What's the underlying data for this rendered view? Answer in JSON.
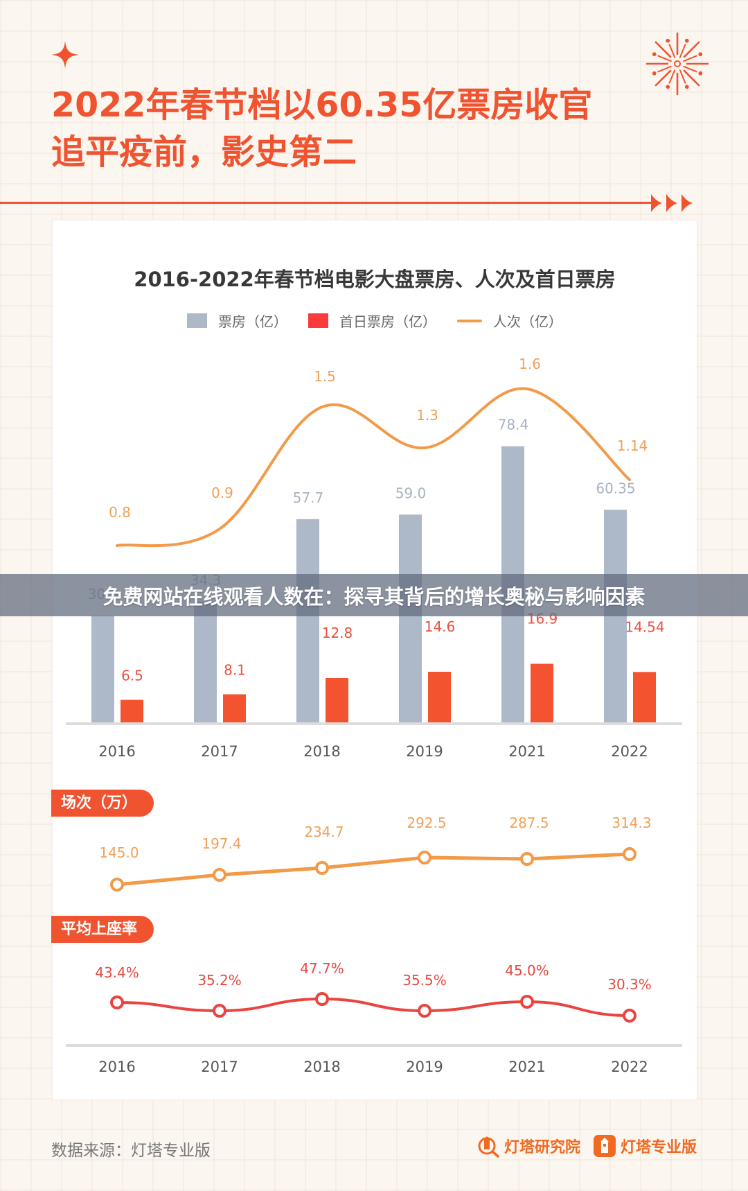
{
  "header": {
    "title_line1": "2022年春节档以60.35亿票房收官",
    "title_line2": "追平疫前，影史第二",
    "icons": [
      "sparkle-star-icon",
      "firework-icon",
      "triple-arrow-icon"
    ]
  },
  "colors": {
    "accent": "#f0532f",
    "box_office_bar": "#adb8c9",
    "first_day_bar": "#f4532f",
    "admissions_line": "#f29a48",
    "occupancy_line": "#ea4440",
    "background": "#fbf6f0",
    "banner_overlay": "#606a7c"
  },
  "main_chart": {
    "title": "2016-2022年春节档电影大盘票房、人次及首日票房",
    "legend": [
      {
        "label": "票房（亿）",
        "type": "bar"
      },
      {
        "label": "首日票房（亿）",
        "type": "bar"
      },
      {
        "label": "人次（亿）",
        "type": "line"
      }
    ],
    "years": [
      "2016",
      "2017",
      "2018",
      "2019",
      "2021",
      "2022"
    ]
  },
  "screenings": {
    "label": "场次（万）"
  },
  "occupancy": {
    "label": "平均上座率"
  },
  "overlay_banner": {
    "text": "免费网站在线观看人数在：探寻其背后的增长奥秘与影响因素"
  },
  "footer": {
    "source": "数据来源：灯塔专业版",
    "logo1": "灯塔研究院",
    "logo2": "灯塔专业版"
  },
  "chart_data": [
    {
      "type": "bar",
      "title": "2016-2022年春节档电影大盘票房、人次及首日票房",
      "categories": [
        "2016",
        "2017",
        "2018",
        "2019",
        "2021",
        "2022"
      ],
      "series": [
        {
          "name": "票房（亿）",
          "type": "bar",
          "values": [
            30.3,
            34.3,
            57.7,
            59.0,
            78.4,
            60.35
          ],
          "labels": [
            "30.3",
            "34.3",
            "57.7",
            "59.0",
            "78.4",
            "60.35"
          ]
        },
        {
          "name": "首日票房（亿）",
          "type": "bar",
          "values": [
            6.5,
            8.1,
            12.8,
            14.6,
            16.9,
            14.54
          ],
          "labels": [
            "6.5",
            "8.1",
            "12.8",
            "14.6",
            "16.9",
            "14.54"
          ]
        },
        {
          "name": "人次（亿）",
          "type": "line",
          "values": [
            0.8,
            0.9,
            1.5,
            1.3,
            1.6,
            1.14
          ],
          "labels": [
            "0.8",
            "0.9",
            "1.5",
            "1.3",
            "1.6",
            "1.14"
          ]
        }
      ],
      "xlabel": "",
      "ylabel": "",
      "grid": false,
      "legend_position": "top"
    },
    {
      "type": "line",
      "title": "场次（万）",
      "categories": [
        "2016",
        "2017",
        "2018",
        "2019",
        "2021",
        "2022"
      ],
      "values": [
        145.0,
        197.4,
        234.7,
        292.5,
        287.5,
        314.3
      ],
      "labels": [
        "145.0",
        "197.4",
        "234.7",
        "292.5",
        "287.5",
        "314.3"
      ]
    },
    {
      "type": "line",
      "title": "平均上座率",
      "categories": [
        "2016",
        "2017",
        "2018",
        "2019",
        "2021",
        "2022"
      ],
      "values": [
        43.4,
        35.2,
        47.7,
        35.5,
        45.0,
        30.3
      ],
      "labels": [
        "43.4%",
        "35.2%",
        "47.7%",
        "35.5%",
        "45.0%",
        "30.3%"
      ],
      "unit": "%"
    }
  ]
}
